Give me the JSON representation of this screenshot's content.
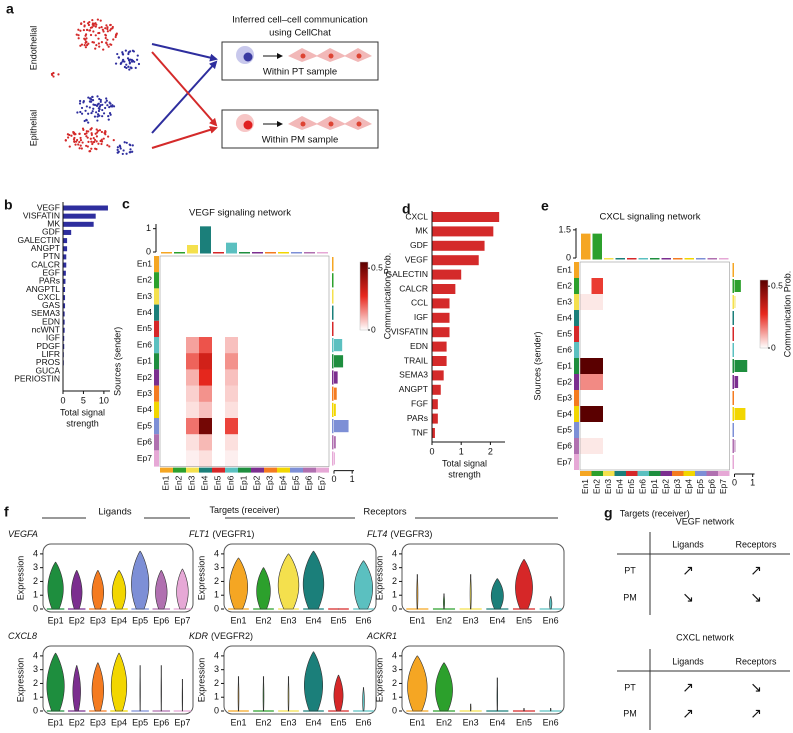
{
  "panel_labels": [
    "a",
    "b",
    "c",
    "d",
    "e",
    "f",
    "g"
  ],
  "panel_a": {
    "title_lines": [
      "Inferred cell–cell communication",
      "using CellChat"
    ],
    "cell_types": [
      "Endothelial",
      "Epithelial"
    ],
    "samples": [
      "Within PT sample",
      "Within PM sample"
    ]
  },
  "panel_f": {
    "ligands": "Ligands",
    "receptors": "Receptors"
  },
  "panel_g": {
    "tables": [
      {
        "title": "VEGF network",
        "columns": [
          "Ligands",
          "Receptors"
        ],
        "rows": [
          [
            "PT",
            "↗",
            "↗"
          ],
          [
            "PM",
            "↘",
            "↘"
          ]
        ]
      },
      {
        "title": "CXCL network",
        "columns": [
          "Ligands",
          "Receptors"
        ],
        "rows": [
          [
            "PT",
            "↗",
            "↘"
          ],
          [
            "PM",
            "↗",
            "↗"
          ]
        ]
      }
    ]
  },
  "chart_data": [
    {
      "type": "hbar",
      "color": "#2e2e9e",
      "categories": [
        "VEGF",
        "VISFATIN",
        "MK",
        "GDF",
        "GALECTIN",
        "ANGPT",
        "PTN",
        "CALCR",
        "EGF",
        "PARs",
        "ANGPTL",
        "CXCL",
        "GAS",
        "SEMA3",
        "EDN",
        "ncWNT",
        "IGF",
        "PDGF",
        "LIFR",
        "PROS",
        "GUCA",
        "PERIOSTIN"
      ],
      "values": [
        11,
        8,
        7.5,
        2,
        1,
        1,
        0.8,
        0.8,
        0.7,
        0.6,
        0.5,
        0.5,
        0.5,
        0.4,
        0.4,
        0.4,
        0.3,
        0.3,
        0.2,
        0.2,
        0.1,
        0.1
      ],
      "xlim": [
        0,
        11.5
      ],
      "xticks": [
        0,
        5,
        10
      ],
      "x_label": [
        "Total signal",
        "strength"
      ]
    },
    {
      "type": "heatmap",
      "title": "VEGF signaling network",
      "clusters": [
        "En1",
        "En2",
        "En3",
        "En4",
        "En5",
        "En6",
        "Ep1",
        "Ep2",
        "Ep3",
        "Ep4",
        "Ep5",
        "Ep6",
        "Ep7"
      ],
      "colors": [
        "#f5a623",
        "#2ca02c",
        "#f4e04d",
        "#1b7f7a",
        "#d62728",
        "#5bc0c0",
        "#1e8e3e",
        "#7b2e8f",
        "#f47b20",
        "#f2d600",
        "#7d8fd6",
        "#b070b0",
        "#e6a8d6"
      ],
      "values": [
        [
          0,
          0,
          0,
          0,
          0,
          0,
          0,
          0,
          0,
          0,
          0,
          0,
          0
        ],
        [
          0,
          0,
          0,
          0,
          0,
          0,
          0,
          0,
          0,
          0,
          0,
          0,
          0
        ],
        [
          0,
          0,
          0,
          0,
          0,
          0,
          0,
          0,
          0,
          0,
          0,
          0,
          0
        ],
        [
          0,
          0,
          0,
          0,
          0,
          0,
          0,
          0,
          0,
          0,
          0,
          0,
          0
        ],
        [
          0,
          0,
          0,
          0,
          0,
          0,
          0,
          0,
          0,
          0,
          0,
          0,
          0
        ],
        [
          0,
          0,
          0.12,
          0.22,
          0,
          0.08,
          0,
          0,
          0,
          0,
          0,
          0,
          0
        ],
        [
          0,
          0,
          0.2,
          0.32,
          0,
          0.14,
          0,
          0,
          0,
          0,
          0,
          0,
          0
        ],
        [
          0,
          0,
          0.1,
          0.28,
          0,
          0.08,
          0,
          0,
          0,
          0,
          0,
          0,
          0
        ],
        [
          0,
          0,
          0.06,
          0.14,
          0,
          0.06,
          0,
          0,
          0,
          0,
          0,
          0,
          0
        ],
        [
          0,
          0,
          0.04,
          0.08,
          0,
          0.04,
          0,
          0,
          0,
          0,
          0,
          0,
          0
        ],
        [
          0,
          0,
          0.18,
          0.5,
          0,
          0.24,
          0,
          0,
          0,
          0,
          0,
          0,
          0
        ],
        [
          0,
          0,
          0.04,
          0.09,
          0,
          0.04,
          0,
          0,
          0,
          0,
          0,
          0,
          0
        ],
        [
          0,
          0,
          0.02,
          0.04,
          0,
          0.02,
          0,
          0,
          0,
          0,
          0,
          0,
          0
        ]
      ],
      "top_values": [
        0,
        0,
        0.3,
        1.1,
        0,
        0.4,
        0,
        0,
        0,
        0,
        0,
        0,
        0
      ],
      "top_ylim": [
        0,
        1.2
      ],
      "top_yticks": [
        0,
        1
      ],
      "right_values": [
        0,
        0,
        0,
        0,
        0,
        0.45,
        0.5,
        0.2,
        0.15,
        0.1,
        0.8,
        0.1,
        0.05
      ],
      "right_xlim": [
        0,
        1.1
      ],
      "right_xticks": [
        0,
        1
      ],
      "colormap": [
        "#ffffff",
        "#e8281e",
        "#5a0000"
      ],
      "colorbar_label": "Communication Prob.",
      "colorbar_lim": [
        0,
        0.55
      ],
      "colorbar_ticks": [
        0,
        0.5
      ],
      "y_label": "Sources (sender)",
      "x_label": "Targets (receiver)"
    },
    {
      "type": "hbar",
      "color": "#d42a2a",
      "categories": [
        "CXCL",
        "MK",
        "GDF",
        "VEGF",
        "GALECTIN",
        "CALCR",
        "CCL",
        "IGF",
        "VISFATIN",
        "EDN",
        "TRAIL",
        "SEMA3",
        "ANGPT",
        "FGF",
        "PARs",
        "TNF"
      ],
      "values": [
        2.3,
        2.1,
        1.8,
        1.6,
        1.0,
        0.8,
        0.6,
        0.6,
        0.6,
        0.5,
        0.5,
        0.4,
        0.3,
        0.2,
        0.2,
        0.1
      ],
      "xlim": [
        0,
        2.5
      ],
      "xticks": [
        0,
        1,
        2
      ],
      "x_label": [
        "Total signal",
        "strength"
      ]
    },
    {
      "type": "heatmap",
      "title": "CXCL signaling network",
      "clusters": [
        "En1",
        "En2",
        "En3",
        "En4",
        "En5",
        "En6",
        "Ep1",
        "Ep2",
        "Ep3",
        "Ep4",
        "Ep5",
        "Ep6",
        "Ep7"
      ],
      "colors": [
        "#f5a623",
        "#2ca02c",
        "#f4e04d",
        "#1b7f7a",
        "#d62728",
        "#5bc0c0",
        "#1e8e3e",
        "#7b2e8f",
        "#f47b20",
        "#f2d600",
        "#7d8fd6",
        "#b070b0",
        "#e6a8d6"
      ],
      "values": [
        [
          0,
          0,
          0,
          0,
          0,
          0,
          0,
          0,
          0,
          0,
          0,
          0,
          0
        ],
        [
          0,
          0.25,
          0,
          0,
          0,
          0,
          0,
          0,
          0,
          0,
          0,
          0,
          0
        ],
        [
          0.03,
          0.03,
          0,
          0,
          0,
          0,
          0,
          0,
          0,
          0,
          0,
          0,
          0
        ],
        [
          0,
          0,
          0,
          0,
          0,
          0,
          0,
          0,
          0,
          0,
          0,
          0,
          0
        ],
        [
          0,
          0,
          0,
          0,
          0,
          0,
          0,
          0,
          0,
          0,
          0,
          0,
          0
        ],
        [
          0,
          0,
          0,
          0,
          0,
          0,
          0,
          0,
          0,
          0,
          0,
          0,
          0
        ],
        [
          0.55,
          0.55,
          0,
          0,
          0,
          0,
          0,
          0,
          0,
          0,
          0,
          0,
          0
        ],
        [
          0.15,
          0.15,
          0,
          0,
          0,
          0,
          0,
          0,
          0,
          0,
          0,
          0,
          0
        ],
        [
          0,
          0,
          0,
          0,
          0,
          0,
          0,
          0,
          0,
          0,
          0,
          0,
          0
        ],
        [
          0.55,
          0.55,
          0,
          0,
          0,
          0,
          0,
          0,
          0,
          0,
          0,
          0,
          0
        ],
        [
          0,
          0,
          0,
          0,
          0,
          0,
          0,
          0,
          0,
          0,
          0,
          0,
          0
        ],
        [
          0.03,
          0.03,
          0,
          0,
          0,
          0,
          0,
          0,
          0,
          0,
          0,
          0,
          0
        ],
        [
          0,
          0,
          0,
          0,
          0,
          0,
          0,
          0,
          0,
          0,
          0,
          0,
          0
        ]
      ],
      "top_values": [
        1.3,
        1.3,
        0,
        0,
        0,
        0,
        0,
        0,
        0,
        0,
        0,
        0,
        0
      ],
      "top_ylim": [
        0,
        1.6
      ],
      "top_yticks": [
        0,
        1.5
      ],
      "right_values": [
        0,
        0.35,
        0.05,
        0,
        0,
        0,
        0.7,
        0.2,
        0,
        0.6,
        0,
        0.05,
        0
      ],
      "right_xlim": [
        0,
        1.1
      ],
      "right_xticks": [
        0,
        1
      ],
      "colormap": [
        "#ffffff",
        "#e8281e",
        "#5a0000"
      ],
      "colorbar_label": "Communication Prob.",
      "colorbar_lim": [
        0,
        0.55
      ],
      "colorbar_ticks": [
        0,
        0.5
      ],
      "y_label": "Sources (sender)",
      "x_label": "Targets (receiver)"
    },
    {
      "type": "violin",
      "gene": "VEGFA",
      "categories": [
        "Ep1",
        "Ep2",
        "Ep3",
        "Ep4",
        "Ep5",
        "Ep6",
        "Ep7"
      ],
      "colors": [
        "#1e8e3e",
        "#7b2e8f",
        "#f47b20",
        "#f2d600",
        "#7d8fd6",
        "#b070b0",
        "#e6a8d6"
      ],
      "values": [
        3.4,
        2.8,
        2.8,
        2.8,
        4.2,
        2.8,
        2.9
      ],
      "widths": [
        0.8,
        0.55,
        0.6,
        0.7,
        0.9,
        0.6,
        0.6
      ],
      "ylim": [
        0,
        4.5
      ],
      "yticks": [
        0,
        1,
        2,
        3,
        4
      ],
      "y_label": "Expression"
    },
    {
      "type": "violin",
      "gene": "FLT1",
      "note": "(VEGFR1)",
      "categories": [
        "En1",
        "En2",
        "En3",
        "En4",
        "En5",
        "En6"
      ],
      "colors": [
        "#f5a623",
        "#2ca02c",
        "#f4e04d",
        "#1b7f7a",
        "#d62728",
        "#5bc0c0"
      ],
      "values": [
        3.7,
        3.0,
        4.0,
        4.2,
        0,
        3.5
      ],
      "widths": [
        0.8,
        0.6,
        0.9,
        0.9,
        0.05,
        0.8
      ],
      "ylim": [
        0,
        4.5
      ],
      "yticks": [
        0,
        1,
        2,
        3,
        4
      ],
      "y_label": "Expression"
    },
    {
      "type": "violin",
      "gene": "FLT4",
      "note": "(VEGFR3)",
      "categories": [
        "En1",
        "En2",
        "En3",
        "En4",
        "En5",
        "En6"
      ],
      "colors": [
        "#f5a623",
        "#2ca02c",
        "#f4e04d",
        "#1b7f7a",
        "#d62728",
        "#5bc0c0"
      ],
      "values": [
        2.5,
        1.1,
        2.5,
        2.2,
        3.6,
        0.9
      ],
      "widths": [
        0.05,
        0.05,
        0.05,
        0.5,
        0.7,
        0.1
      ],
      "ylim": [
        0,
        4.5
      ],
      "yticks": [
        0,
        1,
        2,
        3,
        4
      ],
      "y_label": "Expression"
    },
    {
      "type": "violin",
      "gene": "CXCL8",
      "categories": [
        "Ep1",
        "Ep2",
        "Ep3",
        "Ep4",
        "Ep5",
        "Ep6",
        "Ep7"
      ],
      "colors": [
        "#1e8e3e",
        "#7b2e8f",
        "#f47b20",
        "#f2d600",
        "#7d8fd6",
        "#b070b0",
        "#e6a8d6"
      ],
      "values": [
        4.2,
        3.3,
        3.5,
        4.2,
        3.3,
        3.3,
        2.3
      ],
      "widths": [
        0.9,
        0.4,
        0.6,
        0.8,
        0.03,
        0.03,
        0.03
      ],
      "ylim": [
        0,
        4.5
      ],
      "yticks": [
        0,
        1,
        2,
        3,
        4
      ],
      "y_label": "Expression"
    },
    {
      "type": "violin",
      "gene": "KDR",
      "note": "(VEGFR2)",
      "categories": [
        "En1",
        "En2",
        "En3",
        "En4",
        "En5",
        "En6"
      ],
      "colors": [
        "#f5a623",
        "#2ca02c",
        "#f4e04d",
        "#1b7f7a",
        "#d62728",
        "#5bc0c0"
      ],
      "values": [
        2.5,
        2.5,
        2.5,
        4.3,
        2.6,
        1.7
      ],
      "widths": [
        0.04,
        0.04,
        0.04,
        0.8,
        0.4,
        0.08
      ],
      "ylim": [
        0,
        4.5
      ],
      "yticks": [
        0,
        1,
        2,
        3,
        4
      ],
      "y_label": "Expression"
    },
    {
      "type": "violin",
      "gene": "ACKR1",
      "categories": [
        "En1",
        "En2",
        "En3",
        "En4",
        "En5",
        "En6"
      ],
      "colors": [
        "#f5a623",
        "#2ca02c",
        "#f4e04d",
        "#1b7f7a",
        "#d62728",
        "#5bc0c0"
      ],
      "values": [
        4.0,
        3.5,
        0.5,
        2.4,
        0.2,
        0.2
      ],
      "widths": [
        0.8,
        0.7,
        0.03,
        0.03,
        0.03,
        0.03
      ],
      "ylim": [
        0,
        4.5
      ],
      "yticks": [
        0,
        1,
        2,
        3,
        4
      ],
      "y_label": "Expression"
    }
  ]
}
